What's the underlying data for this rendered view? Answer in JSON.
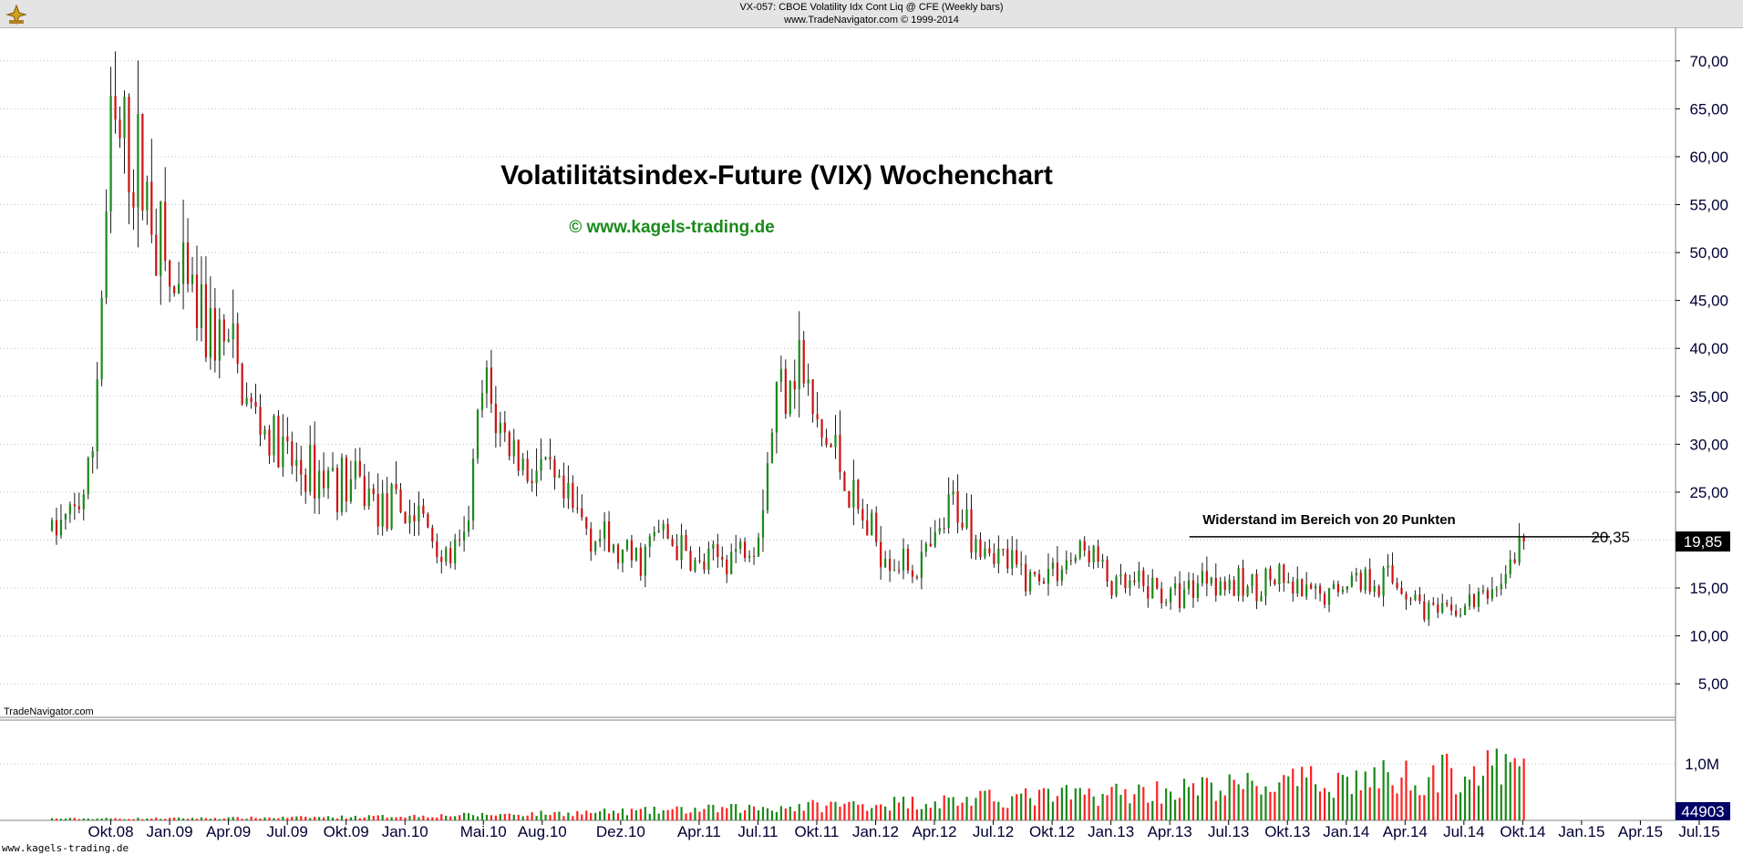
{
  "header": {
    "line1": "VX-057:  CBOE Volatility Idx Cont Liq @ CFE  (Weekly bars)",
    "line2": "www.TradeNavigator.com © 1999-2014"
  },
  "footer": {
    "url": "www.kagels-trading.de"
  },
  "colors": {
    "up": "#1a8a1a",
    "down": "#cc1111",
    "volume_up": "#1a8a1a",
    "volume_down": "#ff2020",
    "value_box": "#000000",
    "volume_box": "#000066"
  },
  "chart_data": {
    "type": "candlestick",
    "title": "Volatilitätsindex-Future (VIX) Wochenchart",
    "subtitle": "© www.kagels-trading.de",
    "annotation": "Widerstand im Bereich von 20 Punkten",
    "watermark": "TradeNavigator.com",
    "resistance": {
      "value": 20.35,
      "label": "20,35",
      "from": "2013-05",
      "to": "2014-10"
    },
    "last_value": {
      "value": 19.85,
      "label": "19,85"
    },
    "last_volume": {
      "label": "44903"
    },
    "y_ticks": [
      "5,00",
      "10,00",
      "15,00",
      "20,00",
      "25,00",
      "30,00",
      "35,00",
      "40,00",
      "45,00",
      "50,00",
      "55,00",
      "60,00",
      "65,00",
      "70,00"
    ],
    "ylim": [
      1.5,
      73.5
    ],
    "volume_tick": "1,0M",
    "x_ticks": [
      "Okt.08",
      "Jan.09",
      "Apr.09",
      "Jul.09",
      "Okt.09",
      "Jan.10",
      "Mai.10",
      "Aug.10",
      "Dez.10",
      "Apr.11",
      "Jul.11",
      "Okt.11",
      "Jan.12",
      "Apr.12",
      "Jul.12",
      "Okt.12",
      "Jan.13",
      "Apr.13",
      "Jul.13",
      "Okt.13",
      "Jan.14",
      "Apr.14",
      "Jul.14",
      "Okt.14",
      "Jan.15",
      "Apr.15",
      "Jul.15"
    ],
    "x_start": "2008-07",
    "x_end": "2015-07",
    "weekly_close_path": [
      [
        "2008-07",
        21
      ],
      [
        "2008-08",
        22
      ],
      [
        "2008-09",
        27
      ],
      [
        "2008-10",
        62
      ],
      [
        "2008-11",
        60
      ],
      [
        "2008-12",
        56
      ],
      [
        "2009-01",
        46
      ],
      [
        "2009-02",
        45
      ],
      [
        "2009-03",
        42
      ],
      [
        "2009-04",
        40
      ],
      [
        "2009-05",
        34
      ],
      [
        "2009-06",
        31
      ],
      [
        "2009-07",
        28
      ],
      [
        "2009-08",
        27
      ],
      [
        "2009-09",
        27
      ],
      [
        "2009-10",
        26
      ],
      [
        "2009-11",
        25
      ],
      [
        "2009-12",
        23
      ],
      [
        "2010-01",
        23
      ],
      [
        "2010-02",
        22
      ],
      [
        "2010-03",
        18
      ],
      [
        "2010-04",
        19
      ],
      [
        "2010-05",
        36
      ],
      [
        "2010-06",
        31
      ],
      [
        "2010-07",
        28
      ],
      [
        "2010-08",
        27
      ],
      [
        "2010-09",
        24
      ],
      [
        "2010-10",
        22
      ],
      [
        "2010-11",
        20
      ],
      [
        "2010-12",
        18
      ],
      [
        "2011-01",
        18
      ],
      [
        "2011-02",
        21
      ],
      [
        "2011-03",
        19
      ],
      [
        "2011-04",
        17
      ],
      [
        "2011-05",
        18
      ],
      [
        "2011-06",
        19
      ],
      [
        "2011-07",
        21
      ],
      [
        "2011-08",
        36
      ],
      [
        "2011-09",
        40
      ],
      [
        "2011-10",
        31
      ],
      [
        "2011-11",
        29
      ],
      [
        "2011-12",
        23
      ],
      [
        "2012-01",
        20
      ],
      [
        "2012-02",
        18
      ],
      [
        "2012-03",
        17
      ],
      [
        "2012-04",
        19
      ],
      [
        "2012-05",
        24
      ],
      [
        "2012-06",
        21
      ],
      [
        "2012-07",
        19
      ],
      [
        "2012-08",
        17
      ],
      [
        "2012-09",
        16
      ],
      [
        "2012-10",
        17
      ],
      [
        "2012-11",
        18
      ],
      [
        "2012-12",
        19
      ],
      [
        "2013-01",
        15
      ],
      [
        "2013-02",
        15
      ],
      [
        "2013-03",
        15
      ],
      [
        "2013-04",
        14
      ],
      [
        "2013-05",
        15
      ],
      [
        "2013-06",
        17
      ],
      [
        "2013-07",
        15
      ],
      [
        "2013-08",
        15
      ],
      [
        "2013-09",
        16
      ],
      [
        "2013-10",
        15
      ],
      [
        "2013-11",
        14
      ],
      [
        "2013-12",
        14
      ],
      [
        "2014-01",
        16
      ],
      [
        "2014-02",
        16
      ],
      [
        "2014-03",
        16
      ],
      [
        "2014-04",
        15
      ],
      [
        "2014-05",
        13
      ],
      [
        "2014-06",
        12
      ],
      [
        "2014-07",
        13
      ],
      [
        "2014-08",
        14
      ],
      [
        "2014-09",
        16
      ],
      [
        "2014-10",
        19.85
      ]
    ]
  }
}
